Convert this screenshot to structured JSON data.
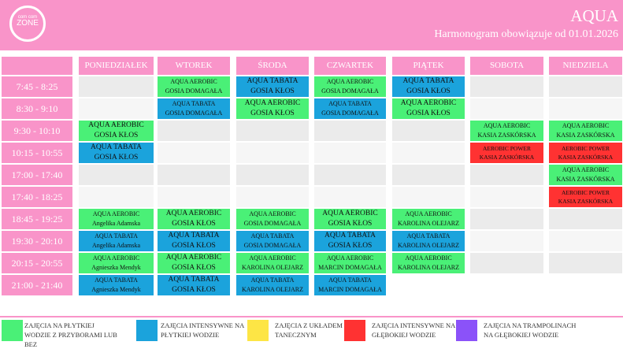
{
  "header": {
    "logo_top": "com com",
    "logo_main": "ZONE",
    "title": "AQUA",
    "subtitle": "Harmonogram obowiązuje od 01.01.2026"
  },
  "colors": {
    "green": "#4af077",
    "blue": "#1ba3dc",
    "yellow": "#fde545",
    "red": "#ff3232",
    "purple": "#8b52f9",
    "pink": "#f994c9"
  },
  "days": [
    "PONIEDZIAŁEK",
    "WTOREK",
    "ŚRODA",
    "CZWARTEK",
    "PIĄTEK",
    "SOBOTA",
    "NIEDZIELA"
  ],
  "times": [
    "7:45 - 8:25",
    "8:30 - 9:10",
    "9:30 - 10:10",
    "10:15 - 10:55",
    "17:00 - 17:40",
    "17:40 - 18:25",
    "18:45 - 19:25",
    "19:30 - 20:10",
    "20:15 - 20:55",
    "21:00 - 21:40"
  ],
  "schedule": [
    [
      null,
      null,
      {
        "t": "AQUA AEROBIC",
        "i": "GOSIA KŁOS",
        "c": "green"
      },
      {
        "t": "AQUA TABATA",
        "i": "GOSIA KŁOS",
        "c": "blue"
      },
      null,
      null,
      {
        "t": "AQUA AEROBIC",
        "i": "Angelika Adamska",
        "c": "green",
        "s": 1
      },
      {
        "t": "AQUA TABATA",
        "i": "Angelika Adamska",
        "c": "blue",
        "s": 1
      },
      {
        "t": "AQUA AEROBIC",
        "i": "Agnieszka Mendyk",
        "c": "green",
        "s": 1
      },
      {
        "t": "AQUA TABATA",
        "i": "Agnieszka Mendyk",
        "c": "blue",
        "s": 1
      }
    ],
    [
      {
        "t": "AQUA AEROBIC",
        "i": "GOSIA DOMAGAŁA",
        "c": "green",
        "s": 1
      },
      {
        "t": "AQUA TABATA",
        "i": "GOSIA DOMAGAŁA",
        "c": "blue",
        "s": 1
      },
      null,
      null,
      null,
      null,
      {
        "t": "AQUA AEROBIC",
        "i": "GOSIA KŁOS",
        "c": "green"
      },
      {
        "t": "AQUA TABATA",
        "i": "GOSIA KŁOS",
        "c": "blue"
      },
      {
        "t": "AQUA AEROBIC",
        "i": "GOSIA KŁOS",
        "c": "green"
      },
      {
        "t": "AQUA TABATA",
        "i": "GOSIA KŁOS",
        "c": "blue"
      }
    ],
    [
      {
        "t": "AQUA TABATA",
        "i": "GOSIA KŁOS",
        "c": "blue"
      },
      {
        "t": "AQUA AEROBIC",
        "i": "GOSIA KŁOS",
        "c": "green"
      },
      null,
      null,
      null,
      null,
      {
        "t": "AQUA AEROBIC",
        "i": "GOSIA DOMAGAŁA",
        "c": "green",
        "s": 1
      },
      {
        "t": "AQUA TABATA",
        "i": "GOSIA DOMAGAŁA",
        "c": "blue",
        "s": 1
      },
      {
        "t": "AQUA AEROBIC",
        "i": "KAROLINA OLEJARZ",
        "c": "green",
        "s": 1
      },
      {
        "t": "AQUA TABATA",
        "i": "KAROLINA OLEJARZ",
        "c": "blue",
        "s": 1
      }
    ],
    [
      {
        "t": "AQUA AEROBIC",
        "i": "GOSIA DOMAGAŁA",
        "c": "green",
        "s": 1
      },
      {
        "t": "AQUA TABATA",
        "i": "GOSIA DOMAGAŁA",
        "c": "blue",
        "s": 1
      },
      null,
      null,
      null,
      null,
      {
        "t": "AQUA AEROBIC",
        "i": "GOSIA KŁOS",
        "c": "green"
      },
      {
        "t": "AQUA TABATA",
        "i": "GOSIA KŁOS",
        "c": "blue"
      },
      {
        "t": "AQUA AEROBIC",
        "i": "MARCIN DOMAGAŁA",
        "c": "green",
        "s": 1
      },
      {
        "t": "AQUA TABATA",
        "i": "MARCIN DOMAGAŁA",
        "c": "blue",
        "s": 1
      }
    ],
    [
      {
        "t": "AQUA TABATA",
        "i": "GOSIA KŁOS",
        "c": "blue"
      },
      {
        "t": "AQUA AEROBIC",
        "i": "GOSIA KŁOS",
        "c": "green"
      },
      null,
      null,
      null,
      null,
      {
        "t": "AQUA AEROBIC",
        "i": "KAROLINA OLEJARZ",
        "c": "green",
        "s": 1
      },
      {
        "t": "AQUA TABATA",
        "i": "KAROLINA OLEJARZ",
        "c": "blue",
        "s": 1
      },
      {
        "t": "AQUA AEROBIC",
        "i": "KAROLINA OLEJARZ",
        "c": "green",
        "s": 1
      },
      "blank"
    ],
    [
      null,
      null,
      {
        "t": "AQUA AEROBIC",
        "i": "KASIA ZASKÓRSKA",
        "c": "green",
        "s": 1
      },
      {
        "t": "AEROBIC POWER",
        "i": "KASIA ZASKÓRSKA",
        "c": "red",
        "s": 2
      },
      null,
      null,
      null,
      null,
      null,
      "blank"
    ],
    [
      null,
      null,
      {
        "t": "AQUA AEROBIC",
        "i": "KASIA ZASKÓRSKA",
        "c": "green",
        "s": 1
      },
      {
        "t": "AEROBIC POWER",
        "i": "KASIA ZASKÓRSKA",
        "c": "red",
        "s": 2
      },
      {
        "t": "AQUA AEROBIC",
        "i": "KASIA ZASKÓRSKA",
        "c": "green",
        "s": 1
      },
      {
        "t": "AEROBIC POWER",
        "i": "KASIA ZASKÓRSKA",
        "c": "red",
        "s": 2
      },
      null,
      null,
      null,
      "blank"
    ]
  ],
  "legend": [
    {
      "color": "green",
      "label": "ZAJĘCIA NA PŁYTKIEJ WODZIE Z PRZYBORAMI LUB BEZ"
    },
    {
      "color": "blue",
      "label": "ZAJĘCIA INTENSYWNE NA PŁYTKIEJ WODZIE"
    },
    {
      "color": "yellow",
      "label": "ZAJĘCIA Z UKŁADEM TANECZNYM"
    },
    {
      "color": "red",
      "label": "ZAJĘCIA INTENSYWNE NA GŁĘBOKIEJ WODZIE"
    },
    {
      "color": "purple",
      "label": "ZAJĘCIA NA TRAMPOLINACH NA GŁĘBOKIEJ WODZIE"
    }
  ]
}
